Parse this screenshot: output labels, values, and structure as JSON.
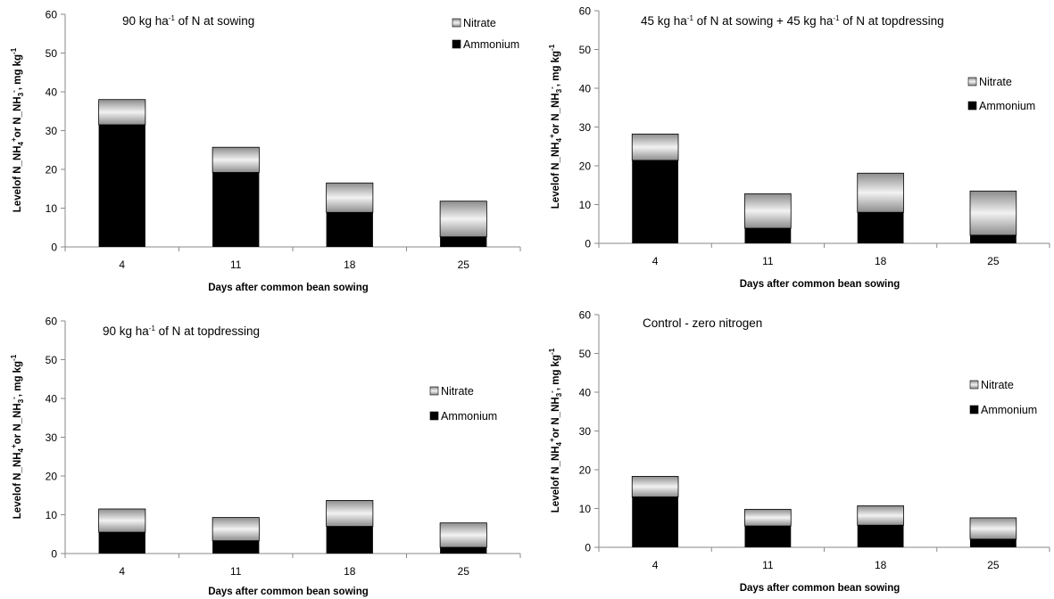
{
  "chart_data": [
    {
      "type": "bar",
      "stacked": true,
      "title_parts": [
        {
          "t": "90 kg ha"
        },
        {
          "t": "-1",
          "sup": true
        },
        {
          "t": " of N at sowing"
        }
      ],
      "categories": [
        "4",
        "11",
        "18",
        "25"
      ],
      "series": [
        {
          "name": "Ammonium",
          "values": [
            31.5,
            19.2,
            8.9,
            2.6
          ]
        },
        {
          "name": "Nitrate",
          "values": [
            6.5,
            6.5,
            7.6,
            9.2
          ]
        }
      ],
      "xlabel": "Days after common bean sowing",
      "ylabel_parts": [
        {
          "t": "Levelof N_NH"
        },
        {
          "t": "4",
          "sub": true
        },
        {
          "t": "+",
          "sup": true
        },
        {
          "t": "or N_NH"
        },
        {
          "t": "3",
          "sub": true
        },
        {
          "t": "-",
          "sup": true
        },
        {
          "t": ", mg kg"
        },
        {
          "t": "-1",
          "sup": true
        }
      ],
      "ylim": [
        0,
        60
      ],
      "yticks": [
        0,
        10,
        20,
        30,
        40,
        50,
        60
      ],
      "legend_position": "top-right"
    },
    {
      "type": "bar",
      "stacked": true,
      "title_parts": [
        {
          "t": "45 kg ha"
        },
        {
          "t": "-1",
          "sup": true
        },
        {
          "t": " of N at sowing + 45  kg ha"
        },
        {
          "t": "-1",
          "sup": true
        },
        {
          "t": " of N at topdressing"
        }
      ],
      "categories": [
        "4",
        "11",
        "18",
        "25"
      ],
      "series": [
        {
          "name": "Ammonium",
          "values": [
            21.4,
            3.9,
            8.0,
            2.1
          ]
        },
        {
          "name": "Nitrate",
          "values": [
            6.8,
            8.9,
            10.1,
            11.4
          ]
        }
      ],
      "xlabel": "Days after common bean sowing",
      "ylabel_parts": [
        {
          "t": "Levelof N_NH"
        },
        {
          "t": "4",
          "sub": true
        },
        {
          "t": "+",
          "sup": true
        },
        {
          "t": "or N_NH"
        },
        {
          "t": "3",
          "sub": true
        },
        {
          "t": "-",
          "sup": true
        },
        {
          "t": ", mg kg"
        },
        {
          "t": "-1",
          "sup": true
        }
      ],
      "ylim": [
        0,
        60
      ],
      "yticks": [
        0,
        10,
        20,
        30,
        40,
        50,
        60
      ],
      "legend_position": "right"
    },
    {
      "type": "bar",
      "stacked": true,
      "title_parts": [
        {
          "t": "90 kg ha"
        },
        {
          "t": "-1",
          "sup": true
        },
        {
          "t": " of N at topdressing"
        }
      ],
      "categories": [
        "4",
        "11",
        "18",
        "25"
      ],
      "series": [
        {
          "name": "Ammonium",
          "values": [
            5.5,
            3.3,
            7.0,
            1.6
          ]
        },
        {
          "name": "Nitrate",
          "values": [
            6.0,
            6.0,
            6.7,
            6.3
          ]
        }
      ],
      "xlabel": "Days after common bean sowing",
      "ylabel_parts": [
        {
          "t": "Levelof N_NH"
        },
        {
          "t": "4",
          "sub": true
        },
        {
          "t": "+",
          "sup": true
        },
        {
          "t": "or N_NH"
        },
        {
          "t": "3",
          "sub": true
        },
        {
          "t": "-",
          "sup": true
        },
        {
          "t": ", mg kg"
        },
        {
          "t": "-1",
          "sup": true
        }
      ],
      "ylim": [
        0,
        60
      ],
      "yticks": [
        0,
        10,
        20,
        30,
        40,
        50,
        60
      ],
      "legend_position": "right"
    },
    {
      "type": "bar",
      "stacked": true,
      "title_parts": [
        {
          "t": "Control - zero nitrogen"
        }
      ],
      "categories": [
        "4",
        "11",
        "18",
        "25"
      ],
      "series": [
        {
          "name": "Ammonium",
          "values": [
            13.0,
            5.5,
            5.7,
            2.1
          ]
        },
        {
          "name": "Nitrate",
          "values": [
            5.3,
            4.3,
            5.0,
            5.5
          ]
        }
      ],
      "xlabel": "Days after common bean sowing",
      "ylabel_parts": [
        {
          "t": "Levelof N_NH"
        },
        {
          "t": "4",
          "sub": true
        },
        {
          "t": "+",
          "sup": true
        },
        {
          "t": "or N_NH"
        },
        {
          "t": "3",
          "sub": true
        },
        {
          "t": "-",
          "sup": true
        },
        {
          "t": ", mg kg"
        },
        {
          "t": "-1",
          "sup": true
        }
      ],
      "ylim": [
        0,
        60
      ],
      "yticks": [
        0,
        10,
        20,
        30,
        40,
        50,
        60
      ],
      "legend_position": "right"
    }
  ],
  "colors": {
    "ammonium": "#000000",
    "nitrate_dark": "#8c8c8c",
    "nitrate_light": "#f2f2f2",
    "axis": "#8a8a8a"
  }
}
